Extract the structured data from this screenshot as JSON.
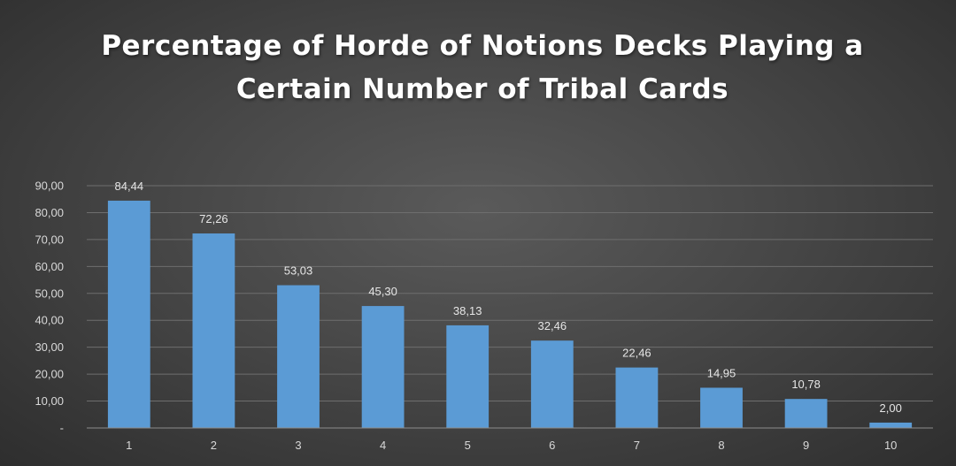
{
  "chart_data": {
    "type": "bar",
    "title_lines": [
      "Percentage of Horde of Notions Decks Playing a",
      "Certain Number of Tribal Cards"
    ],
    "categories": [
      "1",
      "2",
      "3",
      "4",
      "5",
      "6",
      "7",
      "8",
      "9",
      "10"
    ],
    "values": [
      84.44,
      72.26,
      53.03,
      45.3,
      38.13,
      32.46,
      22.46,
      14.95,
      10.78,
      2.0
    ],
    "data_labels": [
      "84,44",
      "72,26",
      "53,03",
      "45,30",
      "38,13",
      "32,46",
      "22,46",
      "14,95",
      "10,78",
      "2,00"
    ],
    "y_ticks": [
      0,
      10,
      20,
      30,
      40,
      50,
      60,
      70,
      80,
      90
    ],
    "y_tick_labels": [
      "-",
      "10,00",
      "20,00",
      "30,00",
      "40,00",
      "50,00",
      "60,00",
      "70,00",
      "80,00",
      "90,00"
    ],
    "ylim": [
      0,
      90
    ],
    "xlabel": "",
    "ylabel": "",
    "grid": true,
    "legend": "none",
    "colors": {
      "bar": "#5b9bd5",
      "gridline": "#6e6e6e",
      "axis": "#8c8c8c",
      "text": "#d9d9d9"
    }
  }
}
